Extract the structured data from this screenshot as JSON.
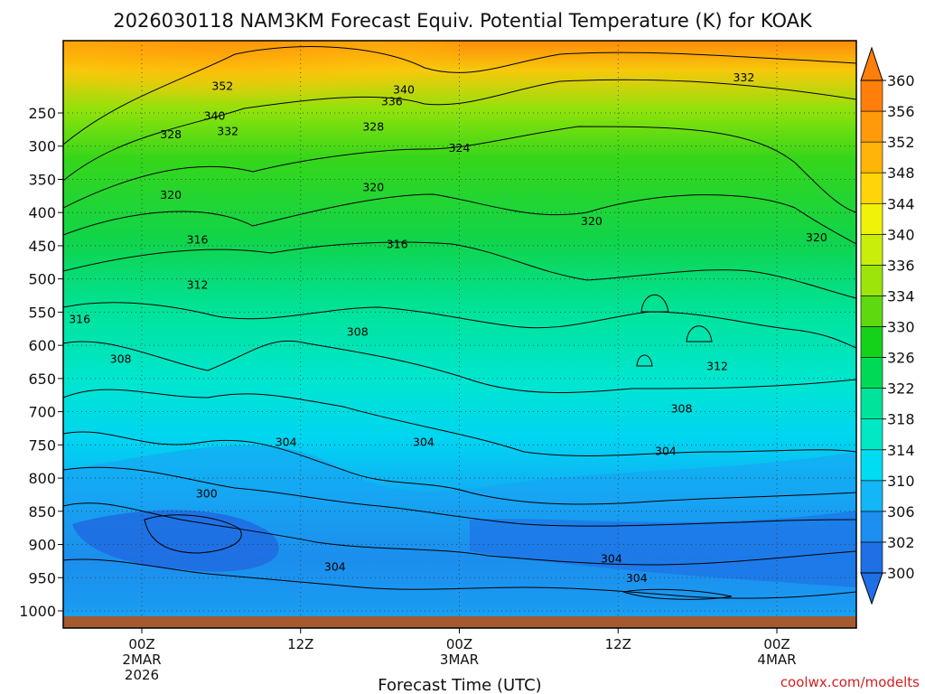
{
  "chart_data": {
    "type": "heatmap",
    "title": "2026030118 NAM3KM Forecast Equiv. Potential Temperature (K) for KOAK",
    "xlabel": "Forecast Time (UTC)",
    "ylabel": "",
    "credit": "coolwx.com/modelts",
    "y_axis": {
      "quantity": "pressure (hPa)",
      "reversed": true,
      "range": [
        1025,
        180
      ],
      "ticks": [
        250,
        300,
        350,
        400,
        450,
        500,
        550,
        600,
        650,
        700,
        750,
        800,
        850,
        900,
        950,
        1000
      ]
    },
    "x_axis": {
      "range_hours": [
        -6,
        54
      ],
      "ticks": [
        {
          "hour": 0,
          "lines": [
            "00Z",
            "2MAR",
            "2026"
          ]
        },
        {
          "hour": 12,
          "lines": [
            "12Z"
          ]
        },
        {
          "hour": 24,
          "lines": [
            "00Z",
            "3MAR"
          ]
        },
        {
          "hour": 36,
          "lines": [
            "12Z"
          ]
        },
        {
          "hour": 48,
          "lines": [
            "00Z",
            "4MAR"
          ]
        }
      ]
    },
    "colorbar": {
      "levels": [
        300,
        302,
        306,
        310,
        314,
        318,
        322,
        326,
        330,
        334,
        336,
        340,
        344,
        348,
        352,
        356,
        360
      ],
      "labels": [
        "300",
        "302",
        "306",
        "310",
        "314",
        "318",
        "322",
        "326",
        "330",
        "334",
        "336",
        "340",
        "344",
        "348",
        "352",
        "356",
        "360"
      ],
      "colors": [
        "#1f6fe5",
        "#1c8ff0",
        "#13b7f5",
        "#00dcf2",
        "#00e8c4",
        "#00e39a",
        "#00d956",
        "#14d21a",
        "#5ed80f",
        "#9ce40a",
        "#c8ee0a",
        "#f0f20a",
        "#ffd50a",
        "#ffb40a",
        "#ff9a0a",
        "#ff7f0a"
      ]
    },
    "contour_labels": [
      {
        "text": "352",
        "hour": 6.1,
        "p": 210
      },
      {
        "text": "340",
        "hour": 19.8,
        "p": 215
      },
      {
        "text": "336",
        "hour": 18.9,
        "p": 233
      },
      {
        "text": "332",
        "hour": 45.5,
        "p": 197
      },
      {
        "text": "340",
        "hour": 5.5,
        "p": 255
      },
      {
        "text": "332",
        "hour": 6.5,
        "p": 278
      },
      {
        "text": "328",
        "hour": 2.2,
        "p": 283
      },
      {
        "text": "328",
        "hour": 17.5,
        "p": 271
      },
      {
        "text": "324",
        "hour": 24.0,
        "p": 303
      },
      {
        "text": "320",
        "hour": 2.2,
        "p": 374
      },
      {
        "text": "320",
        "hour": 17.5,
        "p": 362
      },
      {
        "text": "320",
        "hour": 34.0,
        "p": 413
      },
      {
        "text": "320",
        "hour": 51.0,
        "p": 438
      },
      {
        "text": "316",
        "hour": 4.2,
        "p": 441
      },
      {
        "text": "316",
        "hour": 19.3,
        "p": 448
      },
      {
        "text": "312",
        "hour": 4.2,
        "p": 509
      },
      {
        "text": "312",
        "hour": 43.5,
        "p": 632
      },
      {
        "text": "316",
        "hour": -4.7,
        "p": 561
      },
      {
        "text": "308",
        "hour": 16.3,
        "p": 580
      },
      {
        "text": "308",
        "hour": -1.6,
        "p": 621
      },
      {
        "text": "308",
        "hour": 40.8,
        "p": 696
      },
      {
        "text": "304",
        "hour": 10.9,
        "p": 746
      },
      {
        "text": "304",
        "hour": 21.3,
        "p": 746
      },
      {
        "text": "304",
        "hour": 39.6,
        "p": 760
      },
      {
        "text": "300",
        "hour": 4.9,
        "p": 824
      },
      {
        "text": "304",
        "hour": 14.6,
        "p": 934
      },
      {
        "text": "304",
        "hour": 35.5,
        "p": 922
      },
      {
        "text": "304",
        "hour": 37.4,
        "p": 951
      }
    ],
    "grid": true,
    "legend": "colorbar-right"
  }
}
